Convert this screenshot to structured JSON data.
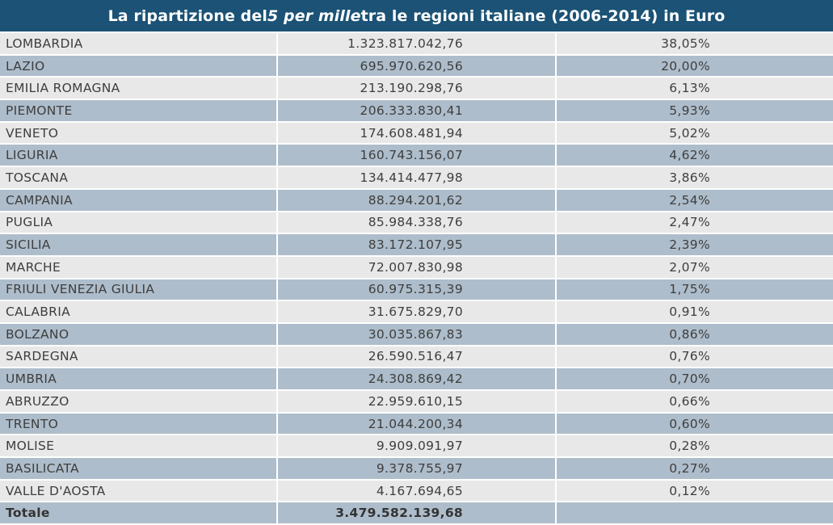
{
  "title": {
    "prefix": "La ripartizione del ",
    "italic": "5 per mille",
    "suffix": " tra le regioni italiane (2006-2014) in Euro"
  },
  "colors": {
    "header_bg": "#1b5275",
    "row_light": "#e8e8e8",
    "row_dark": "#aebdcb",
    "text": "#3e3e3e"
  },
  "chart_data": {
    "type": "table",
    "rows": [
      {
        "region": "LOMBARDIA",
        "amount": "1.323.817.042,76",
        "share": "38,05%"
      },
      {
        "region": "LAZIO",
        "amount": "695.970.620,56",
        "share": "20,00%"
      },
      {
        "region": "EMILIA ROMAGNA",
        "amount": "213.190.298,76",
        "share": "6,13%"
      },
      {
        "region": "PIEMONTE",
        "amount": "206.333.830,41",
        "share": "5,93%"
      },
      {
        "region": "VENETO",
        "amount": "174.608.481,94",
        "share": "5,02%"
      },
      {
        "region": "LIGURIA",
        "amount": "160.743.156,07",
        "share": "4,62%"
      },
      {
        "region": "TOSCANA",
        "amount": "134.414.477,98",
        "share": "3,86%"
      },
      {
        "region": "CAMPANIA",
        "amount": "88.294.201,62",
        "share": "2,54%"
      },
      {
        "region": "PUGLIA",
        "amount": "85.984.338,76",
        "share": "2,47%"
      },
      {
        "region": "SICILIA",
        "amount": "83.172.107,95",
        "share": "2,39%"
      },
      {
        "region": "MARCHE",
        "amount": "72.007.830,98",
        "share": "2,07%"
      },
      {
        "region": "FRIULI VENEZIA GIULIA",
        "amount": "60.975.315,39",
        "share": "1,75%"
      },
      {
        "region": "CALABRIA",
        "amount": "31.675.829,70",
        "share": "0,91%"
      },
      {
        "region": "BOLZANO",
        "amount": "30.035.867,83",
        "share": "0,86%"
      },
      {
        "region": "SARDEGNA",
        "amount": "26.590.516,47",
        "share": "0,76%"
      },
      {
        "region": "UMBRIA",
        "amount": "24.308.869,42",
        "share": "0,70%"
      },
      {
        "region": "ABRUZZO",
        "amount": "22.959.610,15",
        "share": "0,66%"
      },
      {
        "region": "TRENTO",
        "amount": "21.044.200,34",
        "share": "0,60%"
      },
      {
        "region": "MOLISE",
        "amount": "9.909.091,97",
        "share": "0,28%"
      },
      {
        "region": "BASILICATA",
        "amount": "9.378.755,97",
        "share": "0,27%"
      },
      {
        "region": "VALLE D'AOSTA",
        "amount": "4.167.694,65",
        "share": "0,12%"
      }
    ],
    "total": {
      "label": "Totale",
      "amount": "3.479.582.139,68",
      "share": ""
    }
  }
}
